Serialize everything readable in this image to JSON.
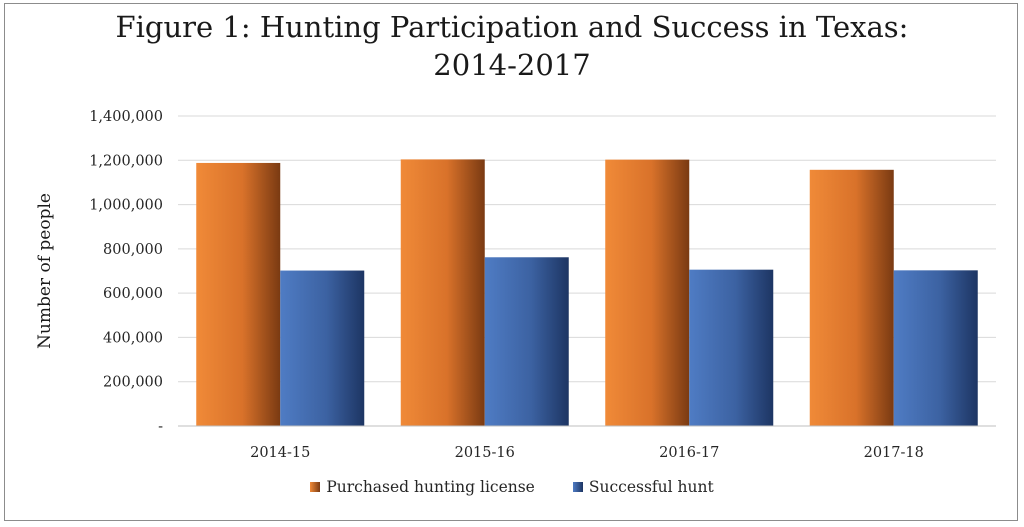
{
  "chart_data": {
    "type": "bar",
    "title_line1": "Figure 1: Hunting Participation and Success in Texas:",
    "title_line2": "2014-2017",
    "xlabel": "",
    "ylabel": "Number of people",
    "categories": [
      "2014-15",
      "2015-16",
      "2016-17",
      "2017-18"
    ],
    "series": [
      {
        "name": "Purchased hunting license",
        "color": "#e07a2e",
        "values": [
          1188000,
          1204000,
          1203000,
          1157000
        ]
      },
      {
        "name": "Successful hunt",
        "color": "#3f67a8",
        "values": [
          702000,
          762000,
          706000,
          703000
        ]
      }
    ],
    "ylim": [
      0,
      1400000
    ],
    "yticks": [
      {
        "value": 0,
        "label": "-"
      },
      {
        "value": 200000,
        "label": "200,000"
      },
      {
        "value": 400000,
        "label": "400,000"
      },
      {
        "value": 600000,
        "label": "600,000"
      },
      {
        "value": 800000,
        "label": "800,000"
      },
      {
        "value": 1000000,
        "label": "1,000,000"
      },
      {
        "value": 1200000,
        "label": "1,200,000"
      },
      {
        "value": 1400000,
        "label": "1,400,000"
      }
    ],
    "grid": true,
    "legend_position": "bottom"
  }
}
